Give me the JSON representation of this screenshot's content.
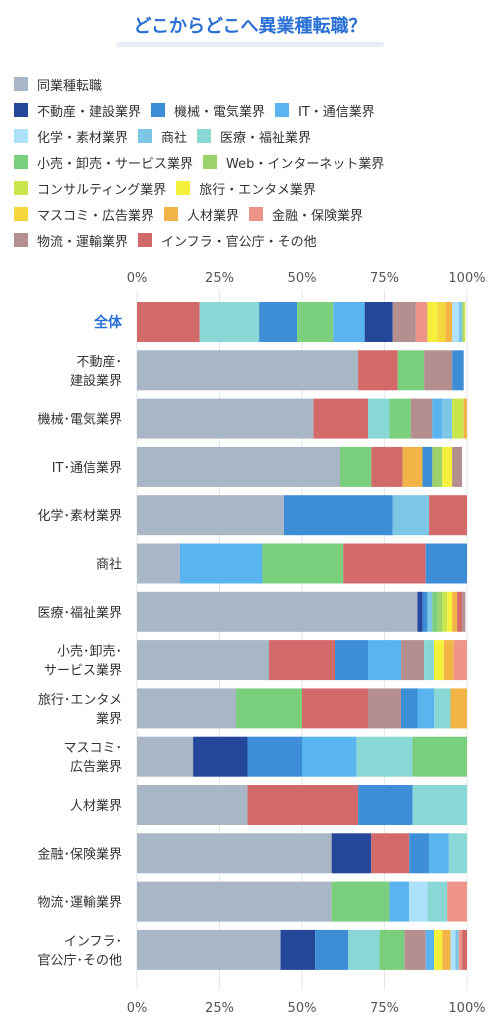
{
  "title": "どこからどこへ異業種転職？",
  "chart_data": {
    "type": "bar",
    "orientation": "horizontal",
    "stacked": true,
    "normalized": true,
    "title": "どこからどこへ異業種転職？",
    "xlim": [
      0,
      100
    ],
    "x_ticks": [
      "0%",
      "25%",
      "50%",
      "75%",
      "100%"
    ],
    "grid": true,
    "legend_position": "top",
    "series": [
      {
        "name": "同業種転職",
        "color": "#a9b6c5"
      },
      {
        "name": "不動産・建設業界",
        "color": "#24479a"
      },
      {
        "name": "機械・電気業界",
        "color": "#3d8ed6"
      },
      {
        "name": "IT・通信業界",
        "color": "#5ab4f0"
      },
      {
        "name": "化学・素材業界",
        "color": "#aee1fb"
      },
      {
        "name": "商社",
        "color": "#7cc6e6"
      },
      {
        "name": "医療・福祉業界",
        "color": "#8ad8d5"
      },
      {
        "name": "小売・卸売・サービス業界",
        "color": "#79cf7c"
      },
      {
        "name": "Web・インターネット業界",
        "color": "#9bd36a"
      },
      {
        "name": "コンサルティング業界",
        "color": "#c9e64d"
      },
      {
        "name": "旅行・エンタメ業界",
        "color": "#f5f03c"
      },
      {
        "name": "マスコミ・広告業界",
        "color": "#f5d63d"
      },
      {
        "name": "人材業界",
        "color": "#f2b446"
      },
      {
        "name": "金融・保険業界",
        "color": "#ef9488"
      },
      {
        "name": "物流・運輸業界",
        "color": "#b58f8f"
      },
      {
        "name": "インフラ・官公庁・その他",
        "color": "#d36a6a"
      }
    ],
    "categories": [
      {
        "label": [
          "全体"
        ],
        "segments": [
          [
            15,
            19
          ],
          [
            6,
            18
          ],
          [
            2,
            11.5
          ],
          [
            7,
            11
          ],
          [
            3,
            9.5
          ],
          [
            1,
            8.5
          ],
          [
            14,
            7
          ],
          [
            13,
            3.5
          ],
          [
            10,
            3
          ],
          [
            11,
            2.5
          ],
          [
            12,
            2
          ],
          [
            4,
            2
          ],
          [
            5,
            1
          ],
          [
            8,
            0.5
          ],
          [
            9,
            0.5
          ]
        ]
      },
      {
        "label": [
          "不動産･",
          "建設業界"
        ],
        "segments": [
          [
            0,
            67
          ],
          [
            15,
            12
          ],
          [
            7,
            8
          ],
          [
            14,
            8.5
          ],
          [
            2,
            3.5
          ]
        ]
      },
      {
        "label": [
          "機械･電気業界"
        ],
        "segments": [
          [
            0,
            53.5
          ],
          [
            15,
            16.5
          ],
          [
            6,
            6.5
          ],
          [
            7,
            6.5
          ],
          [
            14,
            6.5
          ],
          [
            3,
            3
          ],
          [
            5,
            3
          ],
          [
            9,
            3.5
          ],
          [
            12,
            1
          ]
        ]
      },
      {
        "label": [
          "IT･通信業界"
        ],
        "segments": [
          [
            0,
            61.5
          ],
          [
            7,
            9.5
          ],
          [
            15,
            9.5
          ],
          [
            12,
            6
          ],
          [
            2,
            3
          ],
          [
            8,
            3
          ],
          [
            10,
            3
          ],
          [
            14,
            3
          ]
        ]
      },
      {
        "label": [
          "化学･素材業界"
        ],
        "segments": [
          [
            0,
            44.5
          ],
          [
            2,
            33
          ],
          [
            5,
            11
          ],
          [
            15,
            11.5
          ]
        ]
      },
      {
        "label": [
          "商社"
        ],
        "segments": [
          [
            0,
            13
          ],
          [
            3,
            25
          ],
          [
            7,
            24.5
          ],
          [
            15,
            25
          ],
          [
            2,
            12.5
          ]
        ]
      },
      {
        "label": [
          "医療･福祉業界"
        ],
        "segments": [
          [
            0,
            85
          ],
          [
            1,
            1.5
          ],
          [
            2,
            1.5
          ],
          [
            5,
            1.5
          ],
          [
            7,
            1.5
          ],
          [
            8,
            1.5
          ],
          [
            9,
            1.5
          ],
          [
            10,
            1.5
          ],
          [
            12,
            1.5
          ],
          [
            15,
            1.5
          ],
          [
            14,
            1
          ]
        ]
      },
      {
        "label": [
          "小売･卸売･",
          "サービス業界"
        ],
        "segments": [
          [
            0,
            40
          ],
          [
            15,
            20
          ],
          [
            2,
            10
          ],
          [
            3,
            10
          ],
          [
            14,
            7
          ],
          [
            6,
            3
          ],
          [
            10,
            3
          ],
          [
            12,
            3
          ],
          [
            13,
            4
          ]
        ]
      },
      {
        "label": [
          "旅行･エンタメ",
          "業界"
        ],
        "segments": [
          [
            0,
            30
          ],
          [
            7,
            20
          ],
          [
            15,
            20
          ],
          [
            14,
            10
          ],
          [
            2,
            5
          ],
          [
            3,
            5
          ],
          [
            6,
            5
          ],
          [
            12,
            5
          ]
        ]
      },
      {
        "label": [
          "マスコミ･",
          "広告業界"
        ],
        "segments": [
          [
            0,
            17
          ],
          [
            1,
            16.5
          ],
          [
            2,
            16.5
          ],
          [
            3,
            16.5
          ],
          [
            6,
            17
          ],
          [
            7,
            16.5
          ]
        ]
      },
      {
        "label": [
          "人材業界"
        ],
        "segments": [
          [
            0,
            33.5
          ],
          [
            15,
            33.5
          ],
          [
            2,
            16.5
          ],
          [
            6,
            16.5
          ]
        ]
      },
      {
        "label": [
          "金融･保険業界"
        ],
        "segments": [
          [
            0,
            59
          ],
          [
            1,
            12
          ],
          [
            15,
            11.5
          ],
          [
            2,
            6
          ],
          [
            3,
            6
          ],
          [
            6,
            5.5
          ]
        ]
      },
      {
        "label": [
          "物流･運輸業界"
        ],
        "segments": [
          [
            0,
            59
          ],
          [
            7,
            17.5
          ],
          [
            3,
            6
          ],
          [
            4,
            5.5
          ],
          [
            6,
            6
          ],
          [
            13,
            6
          ]
        ]
      },
      {
        "label": [
          "インフラ･",
          "官公庁･その他"
        ],
        "segments": [
          [
            0,
            43.5
          ],
          [
            1,
            10.5
          ],
          [
            2,
            10
          ],
          [
            6,
            9.5
          ],
          [
            7,
            7.5
          ],
          [
            14,
            6.5
          ],
          [
            3,
            2.5
          ],
          [
            10,
            2.5
          ],
          [
            12,
            2.5
          ],
          [
            4,
            1.5
          ],
          [
            5,
            1
          ],
          [
            13,
            1
          ],
          [
            15,
            1.5
          ]
        ]
      }
    ]
  }
}
